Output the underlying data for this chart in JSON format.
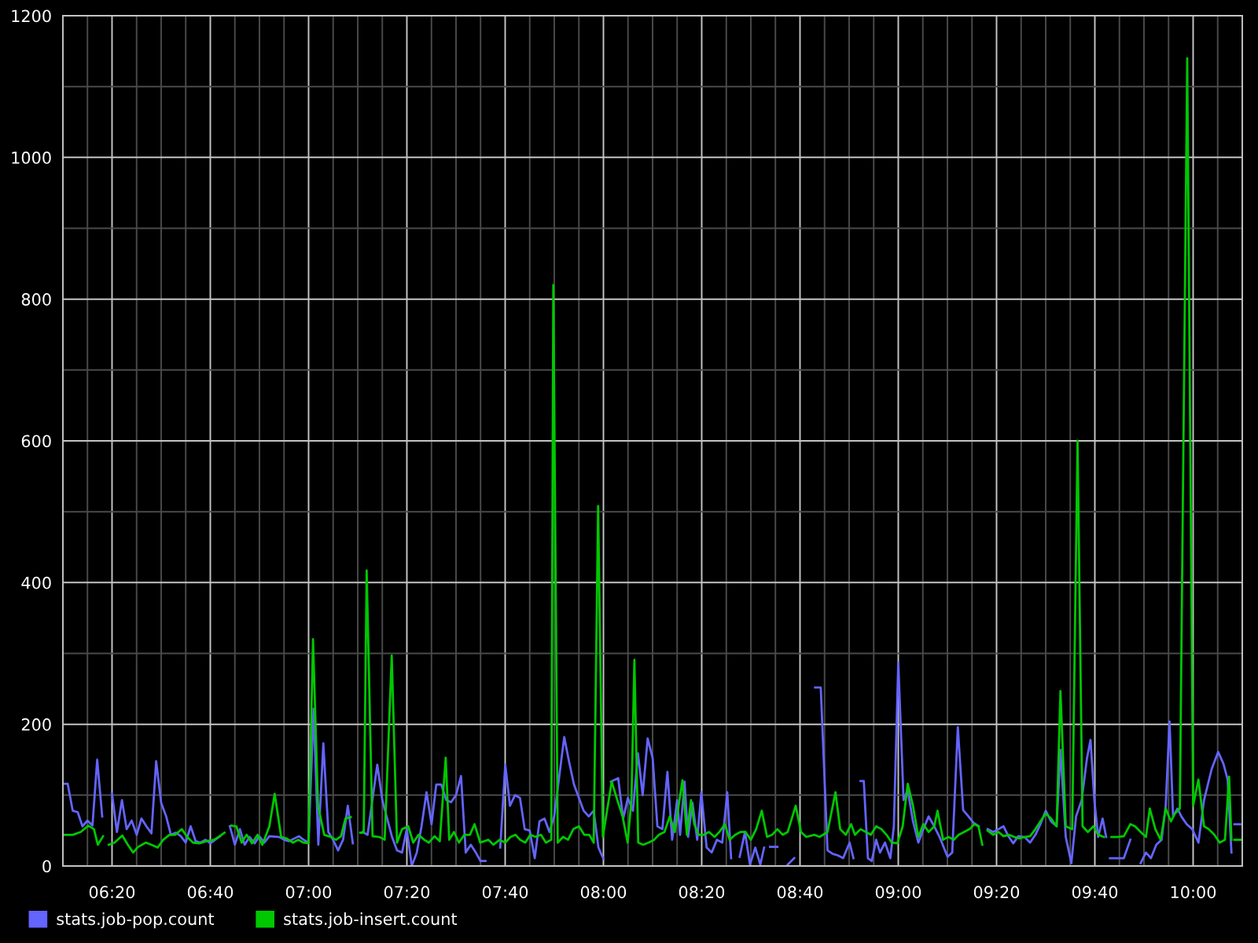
{
  "chart_data": {
    "type": "line",
    "series": [
      {
        "name": "stats.job-pop.count",
        "color": "#6464ff",
        "x": [
          6.167,
          6.183,
          6.2,
          6.217,
          6.233,
          6.25,
          6.267,
          6.283,
          6.3,
          6.317,
          6.333,
          6.35,
          6.367,
          6.383,
          6.4,
          6.417,
          6.433,
          6.45,
          6.467,
          6.483,
          6.5,
          6.517,
          6.533,
          6.55,
          6.567,
          6.583,
          6.6,
          6.617,
          6.633,
          6.65,
          6.667,
          6.683,
          6.7,
          6.717,
          6.733,
          6.75,
          6.767,
          6.783,
          6.8,
          6.817,
          6.833,
          6.85,
          6.867,
          6.9,
          6.917,
          6.933,
          6.967,
          6.983,
          7.0,
          7.017,
          7.033,
          7.05,
          7.067,
          7.083,
          7.1,
          7.117,
          7.133,
          7.15,
          7.167,
          7.183,
          7.2,
          7.233,
          7.25,
          7.283,
          7.3,
          7.317,
          7.333,
          7.35,
          7.367,
          7.383,
          7.4,
          7.417,
          7.433,
          7.45,
          7.467,
          7.483,
          7.5,
          7.517,
          7.533,
          7.55,
          7.567,
          7.583,
          7.6,
          7.617,
          7.65,
          7.667,
          7.683,
          7.7,
          7.717,
          7.733,
          7.75,
          7.767,
          7.783,
          7.8,
          7.817,
          7.833,
          7.867,
          7.883,
          7.9,
          7.917,
          7.933,
          7.95,
          7.967,
          7.983,
          8.0,
          8.008,
          8.025,
          8.05,
          8.067,
          8.083,
          8.1,
          8.117,
          8.133,
          8.15,
          8.167,
          8.183,
          8.2,
          8.217,
          8.233,
          8.25,
          8.26,
          8.275,
          8.287,
          8.302,
          8.318,
          8.332,
          8.35,
          8.367,
          8.385,
          8.403,
          8.42,
          8.433,
          8.447,
          8.462,
          8.48,
          8.497,
          8.515,
          8.532,
          8.545,
          8.555,
          8.565,
          8.59,
          8.608,
          8.625,
          8.647,
          8.675,
          8.718,
          8.737,
          8.76,
          8.778,
          8.795,
          8.813,
          8.835,
          8.848,
          8.86,
          8.872,
          8.883,
          8.897,
          8.91,
          8.925,
          8.938,
          8.955,
          8.973,
          8.985,
          9.0,
          9.018,
          9.032,
          9.05,
          9.068,
          9.085,
          9.103,
          9.122,
          9.14,
          9.167,
          9.183,
          9.202,
          9.22,
          9.238,
          9.255,
          9.273,
          9.29,
          9.303,
          9.322,
          9.34,
          9.357,
          9.375,
          9.39,
          9.407,
          9.428,
          9.447,
          9.465,
          9.482,
          9.5,
          9.518,
          9.537,
          9.55,
          9.568,
          9.587,
          9.603,
          9.622,
          9.64,
          9.652,
          9.665,
          9.678,
          9.693,
          9.705,
          9.712,
          9.718,
          9.765,
          9.787,
          9.803,
          9.822,
          9.84,
          9.857,
          9.875,
          9.893,
          9.907,
          9.92,
          9.932,
          9.947,
          9.96,
          9.978,
          9.997,
          10.018,
          10.037,
          10.063,
          10.085,
          10.103,
          10.117,
          10.13,
          10.135,
          10.14,
          10.165
        ],
        "values": [
          116,
          116,
          78,
          76,
          56,
          64,
          57,
          150,
          70,
          null,
          103,
          48,
          93,
          52,
          64,
          44,
          67,
          56,
          46,
          148,
          89,
          70,
          44,
          47,
          42,
          33,
          56,
          35,
          33,
          37,
          32,
          37,
          42,
          null,
          56,
          30,
          52,
          30,
          41,
          32,
          42,
          33,
          42,
          41,
          37,
          35,
          42,
          37,
          33,
          222,
          30,
          173,
          48,
          37,
          22,
          37,
          85,
          32,
          null,
          48,
          44,
          143,
          93,
          41,
          22,
          19,
          52,
          0,
          19,
          56,
          104,
          59,
          115,
          115,
          93,
          90,
          100,
          127,
          19,
          30,
          19,
          7,
          7,
          null,
          26,
          143,
          85,
          100,
          96,
          52,
          50,
          11,
          63,
          67,
          48,
          70,
          182,
          148,
          115,
          96,
          78,
          70,
          78,
          26,
          10,
          null,
          119,
          124,
          67,
          96,
          78,
          159,
          100,
          180,
          152,
          56,
          52,
          133,
          37,
          93,
          44,
          119,
          41,
          89,
          37,
          104,
          26,
          19,
          37,
          33,
          104,
          11,
          null,
          13,
          48,
          2,
          26,
          2,
          26,
          null,
          27,
          27,
          null,
          2,
          11,
          null,
          252,
          252,
          22,
          17,
          15,
          11,
          33,
          11,
          null,
          120,
          120,
          11,
          7,
          37,
          19,
          33,
          11,
          56,
          287,
          93,
          107,
          63,
          33,
          52,
          70,
          56,
          41,
          13,
          19,
          196,
          79,
          70,
          61,
          56,
          null,
          52,
          48,
          52,
          56,
          41,
          32,
          42,
          41,
          33,
          44,
          59,
          78,
          63,
          56,
          164,
          41,
          4,
          70,
          93,
          152,
          178,
          93,
          41,
          67,
          41,
          null,
          11,
          11,
          37,
          null,
          4,
          19,
          11,
          30,
          37,
          85,
          204,
          70,
          81,
          70,
          59,
          52,
          33,
          93,
          137,
          161,
          144,
          122,
          19,
          null,
          59,
          59
        ]
      },
      {
        "name": "stats.job-insert.count",
        "color": "#00c800",
        "x": [
          6.167,
          6.2,
          6.227,
          6.253,
          6.272,
          6.285,
          6.303,
          6.313,
          6.322,
          6.342,
          6.368,
          6.387,
          6.405,
          6.422,
          6.448,
          6.467,
          6.488,
          6.507,
          6.528,
          6.547,
          6.57,
          6.588,
          6.608,
          6.63,
          6.653,
          6.68,
          6.698,
          6.715,
          6.725,
          6.738,
          6.755,
          6.773,
          6.79,
          6.808,
          6.827,
          6.843,
          6.867,
          6.885,
          6.907,
          6.925,
          6.947,
          6.965,
          6.982,
          7.0,
          7.015,
          7.032,
          7.053,
          7.075,
          7.093,
          7.11,
          7.125,
          7.143,
          7.158,
          7.175,
          7.187,
          7.197,
          7.217,
          7.24,
          7.258,
          7.282,
          7.3,
          7.317,
          7.338,
          7.355,
          7.373,
          7.392,
          7.408,
          7.427,
          7.445,
          7.465,
          7.477,
          7.493,
          7.51,
          7.528,
          7.547,
          7.563,
          7.582,
          7.61,
          7.627,
          7.648,
          7.667,
          7.685,
          7.702,
          7.717,
          7.735,
          7.752,
          7.77,
          7.788,
          7.805,
          7.823,
          7.83,
          7.845,
          7.863,
          7.88,
          7.898,
          7.917,
          7.935,
          7.952,
          7.967,
          7.982,
          7.998,
          8.028,
          8.047,
          8.065,
          8.082,
          8.095,
          8.105,
          8.118,
          8.135,
          8.153,
          8.172,
          8.188,
          8.207,
          8.225,
          8.242,
          8.255,
          8.268,
          8.283,
          8.297,
          8.308,
          8.323,
          8.34,
          8.358,
          8.377,
          8.393,
          8.412,
          8.428,
          8.447,
          8.465,
          8.482,
          8.5,
          8.518,
          8.537,
          8.555,
          8.572,
          8.59,
          8.608,
          8.625,
          8.652,
          8.67,
          8.688,
          8.715,
          8.733,
          8.76,
          8.787,
          8.803,
          8.822,
          8.84,
          8.853,
          8.872,
          8.89,
          8.907,
          8.925,
          8.943,
          8.96,
          8.978,
          8.997,
          9.015,
          9.032,
          9.05,
          9.068,
          9.085,
          9.103,
          9.122,
          9.133,
          9.152,
          9.17,
          9.188,
          9.205,
          9.223,
          9.242,
          9.258,
          9.272,
          9.285,
          9.293,
          9.303,
          9.322,
          9.34,
          9.357,
          9.375,
          9.393,
          9.412,
          9.428,
          9.447,
          9.465,
          9.482,
          9.5,
          9.518,
          9.537,
          9.55,
          9.568,
          9.59,
          9.608,
          9.625,
          9.643,
          9.662,
          9.678,
          9.697,
          9.708,
          9.723,
          9.742,
          9.765,
          9.787,
          9.803,
          9.822,
          9.84,
          9.853,
          9.872,
          9.89,
          9.907,
          9.925,
          9.938,
          9.955,
          9.98,
          10.0,
          10.018,
          10.037,
          10.053,
          10.072,
          10.09,
          10.108,
          10.122,
          10.13,
          10.135,
          10.14,
          10.165
        ],
        "values": [
          44,
          44,
          48,
          57,
          52,
          30,
          42,
          null,
          30,
          33,
          43,
          30,
          19,
          27,
          33,
          30,
          26,
          37,
          44,
          44,
          52,
          41,
          33,
          32,
          35,
          37,
          42,
          47,
          null,
          57,
          56,
          33,
          44,
          32,
          44,
          30,
          56,
          102,
          41,
          39,
          33,
          37,
          33,
          32,
          320,
          85,
          44,
          41,
          37,
          42,
          67,
          69,
          null,
          47,
          47,
          417,
          42,
          41,
          37,
          297,
          33,
          52,
          56,
          33,
          44,
          37,
          33,
          42,
          35,
          153,
          37,
          48,
          33,
          44,
          44,
          59,
          33,
          37,
          30,
          37,
          33,
          41,
          44,
          37,
          33,
          44,
          41,
          44,
          33,
          37,
          820,
          33,
          41,
          37,
          52,
          56,
          44,
          44,
          33,
          508,
          41,
          119,
          93,
          70,
          33,
          93,
          291,
          33,
          30,
          33,
          37,
          44,
          48,
          70,
          48,
          85,
          121,
          44,
          93,
          59,
          44,
          44,
          48,
          41,
          48,
          59,
          37,
          44,
          48,
          48,
          37,
          52,
          78,
          41,
          44,
          52,
          44,
          48,
          85,
          48,
          41,
          44,
          41,
          48,
          104,
          52,
          44,
          59,
          44,
          52,
          48,
          44,
          56,
          52,
          44,
          33,
          32,
          56,
          116,
          85,
          41,
          59,
          48,
          56,
          78,
          37,
          41,
          37,
          44,
          48,
          52,
          59,
          56,
          30,
          null,
          50,
          44,
          48,
          42,
          44,
          41,
          39,
          41,
          42,
          52,
          63,
          74,
          67,
          56,
          247,
          56,
          52,
          600,
          56,
          48,
          56,
          44,
          41,
          null,
          41,
          41,
          42,
          59,
          56,
          48,
          41,
          81,
          52,
          37,
          81,
          63,
          74,
          81,
          1140,
          85,
          122,
          56,
          52,
          44,
          33,
          37,
          126,
          37,
          null,
          37,
          37
        ]
      }
    ],
    "xlim": [
      6.1667,
      10.1667
    ],
    "xticks": [
      {
        "value": 6.25,
        "label": null
      },
      {
        "value": 6.3333,
        "label": "06:20"
      },
      {
        "value": 6.4167,
        "label": null
      },
      {
        "value": 6.5,
        "label": null
      },
      {
        "value": 6.5833,
        "label": null
      },
      {
        "value": 6.6667,
        "label": "06:40"
      },
      {
        "value": 6.75,
        "label": null
      },
      {
        "value": 6.8333,
        "label": null
      },
      {
        "value": 6.9167,
        "label": null
      },
      {
        "value": 7,
        "label": "07:00"
      },
      {
        "value": 7.0833,
        "label": null
      },
      {
        "value": 7.1667,
        "label": null
      },
      {
        "value": 7.25,
        "label": null
      },
      {
        "value": 7.3333,
        "label": "07:20"
      },
      {
        "value": 7.4167,
        "label": null
      },
      {
        "value": 7.5,
        "label": null
      },
      {
        "value": 7.5833,
        "label": null
      },
      {
        "value": 7.6667,
        "label": "07:40"
      },
      {
        "value": 7.75,
        "label": null
      },
      {
        "value": 7.8333,
        "label": null
      },
      {
        "value": 7.9167,
        "label": null
      },
      {
        "value": 8,
        "label": "08:00"
      },
      {
        "value": 8.0833,
        "label": null
      },
      {
        "value": 8.1667,
        "label": null
      },
      {
        "value": 8.25,
        "label": null
      },
      {
        "value": 8.3333,
        "label": "08:20"
      },
      {
        "value": 8.4167,
        "label": null
      },
      {
        "value": 8.5,
        "label": null
      },
      {
        "value": 8.5833,
        "label": null
      },
      {
        "value": 8.6667,
        "label": "08:40"
      },
      {
        "value": 8.75,
        "label": null
      },
      {
        "value": 8.8333,
        "label": null
      },
      {
        "value": 8.9167,
        "label": null
      },
      {
        "value": 9,
        "label": "09:00"
      },
      {
        "value": 9.0833,
        "label": null
      },
      {
        "value": 9.1667,
        "label": null
      },
      {
        "value": 9.25,
        "label": null
      },
      {
        "value": 9.3333,
        "label": "09:20"
      },
      {
        "value": 9.4167,
        "label": null
      },
      {
        "value": 9.5,
        "label": null
      },
      {
        "value": 9.5833,
        "label": null
      },
      {
        "value": 9.6667,
        "label": "09:40"
      },
      {
        "value": 9.75,
        "label": null
      },
      {
        "value": 9.8333,
        "label": null
      },
      {
        "value": 9.9167,
        "label": null
      },
      {
        "value": 10,
        "label": "10:00"
      },
      {
        "value": 10.0833,
        "label": null
      }
    ],
    "ylim": [
      0,
      1200
    ],
    "yticks": [
      0,
      {
        "value": 100,
        "label": null
      },
      200,
      {
        "value": 300,
        "label": null
      },
      400,
      {
        "value": 500,
        "label": null
      },
      600,
      {
        "value": 700,
        "label": null
      },
      800,
      {
        "value": 900,
        "label": null
      },
      1000,
      {
        "value": 1100,
        "label": null
      },
      1200
    ],
    "grid": true,
    "legend": "bottom"
  }
}
